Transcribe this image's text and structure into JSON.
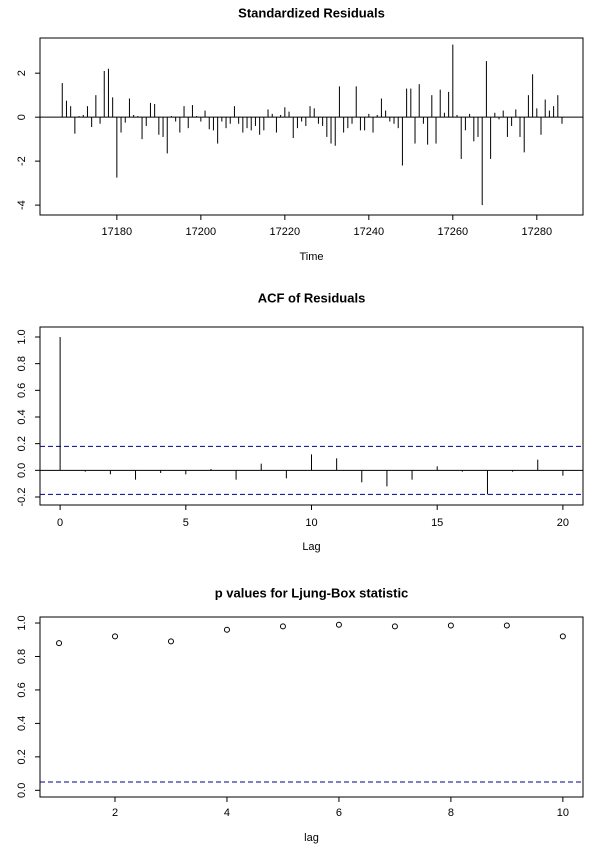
{
  "chart_data": [
    {
      "type": "spike",
      "title": "Standardized Residuals",
      "x_label": "Time",
      "x": [
        17167,
        17168,
        17169,
        17170,
        17171,
        17172,
        17173,
        17174,
        17175,
        17176,
        17177,
        17178,
        17179,
        17180,
        17181,
        17182,
        17183,
        17184,
        17185,
        17186,
        17187,
        17188,
        17189,
        17190,
        17191,
        17192,
        17193,
        17194,
        17195,
        17196,
        17197,
        17198,
        17199,
        17200,
        17201,
        17202,
        17203,
        17204,
        17205,
        17206,
        17207,
        17208,
        17209,
        17210,
        17211,
        17212,
        17213,
        17214,
        17215,
        17216,
        17217,
        17218,
        17219,
        17220,
        17221,
        17222,
        17223,
        17224,
        17225,
        17226,
        17227,
        17228,
        17229,
        17230,
        17231,
        17232,
        17233,
        17234,
        17235,
        17236,
        17237,
        17238,
        17239,
        17240,
        17241,
        17242,
        17243,
        17244,
        17245,
        17246,
        17247,
        17248,
        17249,
        17250,
        17251,
        17252,
        17253,
        17254,
        17255,
        17256,
        17257,
        17258,
        17259,
        17260,
        17261,
        17262,
        17263,
        17264,
        17265,
        17266,
        17267,
        17268,
        17269,
        17270,
        17271,
        17272,
        17273,
        17274,
        17275,
        17276,
        17277,
        17278,
        17279,
        17280,
        17281,
        17282,
        17283,
        17284,
        17285,
        17286
      ],
      "values": [
        1.55,
        0.75,
        0.5,
        -0.75,
        0.05,
        0.1,
        0.5,
        -0.45,
        1.0,
        -0.3,
        2.1,
        2.2,
        0.9,
        -2.75,
        -0.7,
        -0.25,
        0.85,
        0.1,
        0.05,
        -1.0,
        -0.4,
        0.65,
        0.6,
        -0.8,
        -0.9,
        -1.65,
        0.05,
        -0.2,
        -0.7,
        0.5,
        -0.5,
        0.55,
        0.05,
        -0.2,
        0.3,
        -0.55,
        -0.6,
        -1.2,
        -0.2,
        -0.5,
        -0.3,
        0.5,
        -0.3,
        -0.7,
        -0.5,
        -0.6,
        -0.4,
        -0.8,
        -0.6,
        0.35,
        0.15,
        -0.7,
        0.1,
        0.45,
        0.25,
        -0.95,
        -0.5,
        -0.2,
        -0.4,
        0.5,
        0.4,
        -0.3,
        -0.4,
        -0.9,
        -1.2,
        -1.3,
        1.4,
        -0.7,
        -0.5,
        -0.3,
        1.4,
        -0.6,
        -0.6,
        0.15,
        -0.7,
        0.1,
        0.85,
        0.3,
        -0.2,
        -0.3,
        -0.5,
        -2.2,
        1.3,
        1.3,
        -1.2,
        1.5,
        -0.3,
        -1.25,
        1.0,
        -1.2,
        1.25,
        0.2,
        1.15,
        3.3,
        0.1,
        -1.9,
        -0.6,
        0.15,
        -1.1,
        -0.9,
        -4.0,
        2.55,
        -1.9,
        0.2,
        -0.1,
        0.3,
        -0.9,
        -0.4,
        0.35,
        -0.9,
        -1.6,
        1.0,
        1.95,
        0.4,
        -0.8,
        0.8,
        0.3,
        0.5,
        1.0,
        -0.3
      ],
      "color": "#000000",
      "xlim": [
        17161.7,
        17291
      ],
      "xticks": [
        17180,
        17200,
        17220,
        17240,
        17260,
        17280
      ],
      "ylim": [
        -4.45,
        3.6
      ],
      "yticks": [
        -4,
        -2,
        0,
        2
      ]
    },
    {
      "type": "spike",
      "title": "ACF of Residuals",
      "x_label": "Lag",
      "x": [
        0,
        1,
        2,
        3,
        4,
        5,
        6,
        7,
        8,
        9,
        10,
        11,
        12,
        13,
        14,
        15,
        16,
        17,
        18,
        19,
        20
      ],
      "values": [
        1.0,
        -0.01,
        -0.03,
        -0.07,
        -0.02,
        -0.03,
        0.01,
        -0.07,
        0.05,
        -0.06,
        0.12,
        0.09,
        -0.09,
        -0.12,
        -0.07,
        0.03,
        -0.01,
        -0.18,
        -0.01,
        0.08,
        -0.04
      ],
      "color": "#000000",
      "hlines": [
        0.18,
        -0.18
      ],
      "hline_color": "#00008b",
      "xlim": [
        -0.8,
        20.8
      ],
      "xticks": [
        0,
        5,
        10,
        15,
        20
      ],
      "ylim": [
        -0.26,
        1.075
      ],
      "yticks": [
        {
          "value": -0.2,
          "label": "-0.2"
        },
        {
          "value": 0,
          "label": "0.0"
        },
        {
          "value": 0.2,
          "label": "0.2"
        },
        {
          "value": 0.4,
          "label": "0.4"
        },
        {
          "value": 0.6,
          "label": "0.6"
        },
        {
          "value": 0.8,
          "label": "0.8"
        },
        {
          "value": 1,
          "label": "1.0"
        }
      ]
    },
    {
      "type": "scatter",
      "title": "p values for Ljung-Box statistic",
      "x_label": "lag",
      "x": [
        1,
        2,
        3,
        4,
        5,
        6,
        7,
        8,
        9,
        10
      ],
      "values": [
        0.88,
        0.92,
        0.89,
        0.96,
        0.98,
        0.99,
        0.98,
        0.985,
        0.985,
        0.92
      ],
      "color": "#000000",
      "hlines": [
        0.05
      ],
      "hline_color": "#00008b",
      "xlim": [
        0.66,
        10.36
      ],
      "xticks": [
        2,
        4,
        6,
        8,
        10
      ],
      "ylim": [
        -0.04,
        1.036
      ],
      "yticks": [
        {
          "value": 0,
          "label": "0.0"
        },
        {
          "value": 0.2,
          "label": "0.2"
        },
        {
          "value": 0.4,
          "label": "0.4"
        },
        {
          "value": 0.6,
          "label": "0.6"
        },
        {
          "value": 0.8,
          "label": "0.8"
        },
        {
          "value": 1,
          "label": "1.0"
        }
      ]
    }
  ]
}
